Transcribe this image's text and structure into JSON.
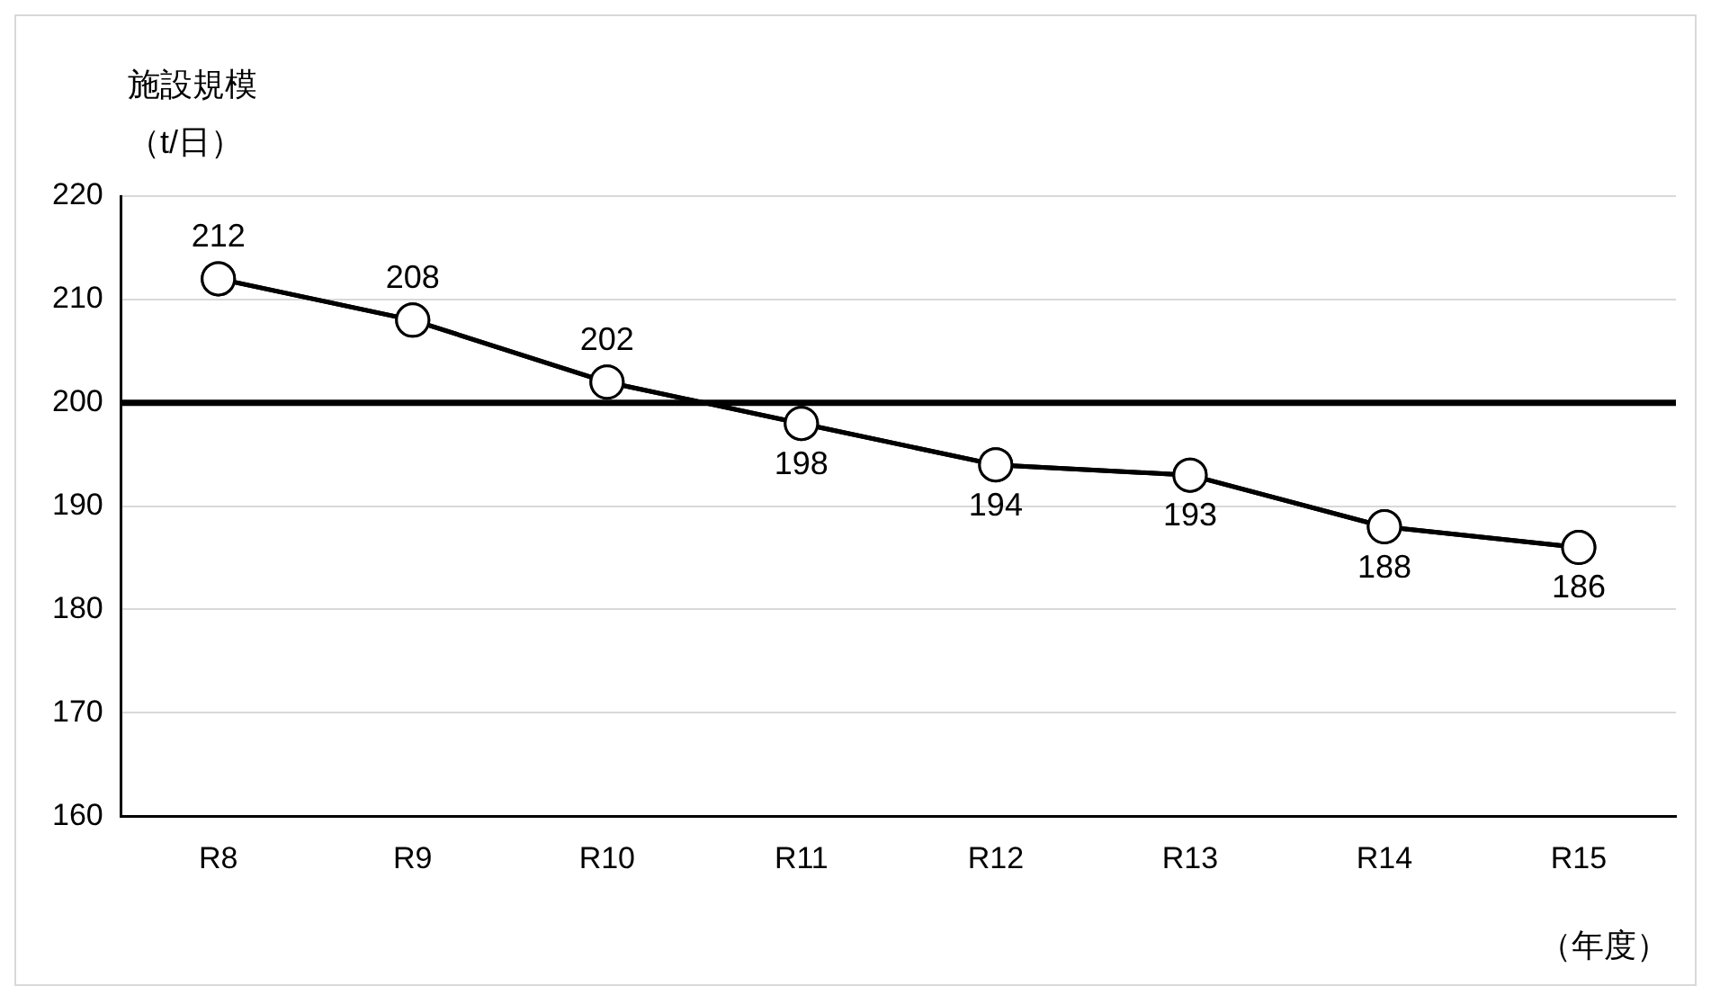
{
  "chart_data": {
    "type": "line",
    "ylabel": "施設規模（t/日）",
    "xlabel": "（年度）",
    "categories": [
      "R8",
      "R9",
      "R10",
      "R11",
      "R12",
      "R13",
      "R14",
      "R15"
    ],
    "series": [
      {
        "color": "#000000",
        "values": [
          212,
          208,
          202,
          198,
          194,
          193,
          188,
          186
        ]
      }
    ],
    "ylim": [
      160,
      220
    ],
    "yticks": [
      160,
      170,
      180,
      190,
      200,
      210,
      220
    ],
    "ref_lines": [
      {
        "axis": "y",
        "value": 200,
        "color": "#000000"
      }
    ],
    "grid": "y",
    "legend": false,
    "marker": "circle",
    "line_style": "solid",
    "data_labels": true
  }
}
